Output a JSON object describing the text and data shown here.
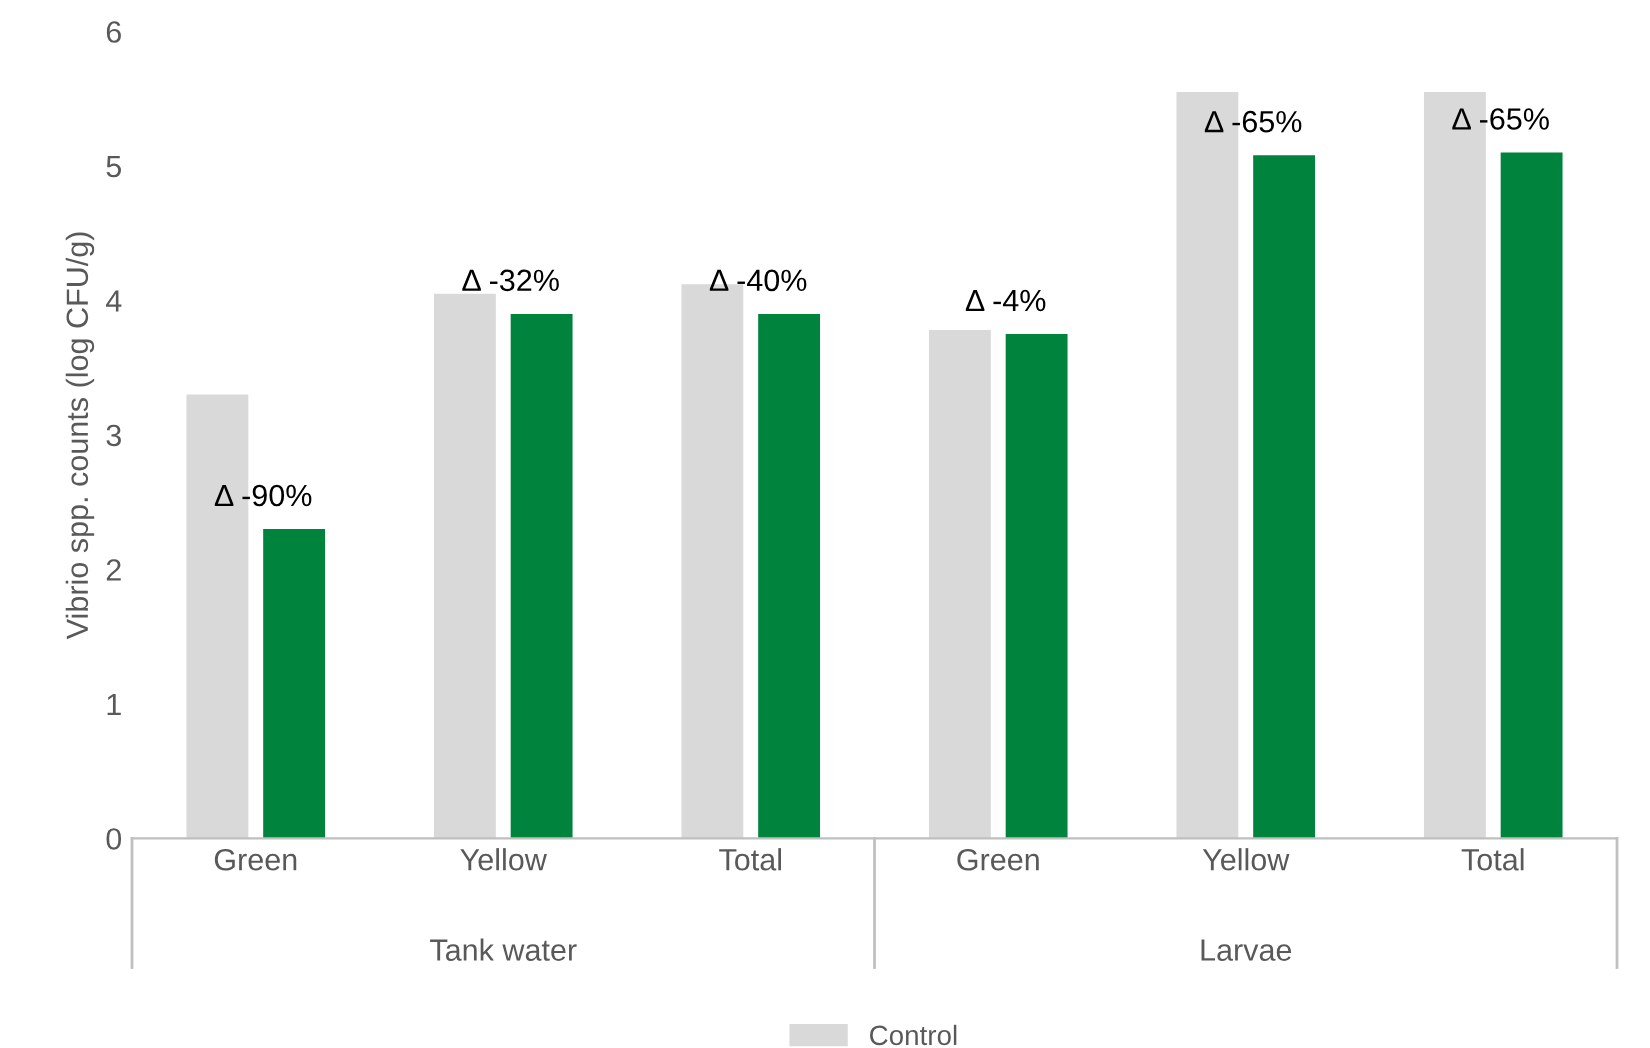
{
  "chart_data": {
    "type": "bar",
    "ylabel": "Vibrio spp. counts (log CFU/g)",
    "categories": [
      "Green",
      "Yellow",
      "Total",
      "Green",
      "Yellow",
      "Total"
    ],
    "series": [
      {
        "name": "Control",
        "color": "#d9d9d9",
        "values": [
          3.3,
          4.05,
          4.12,
          3.78,
          5.55,
          5.55
        ]
      },
      {
        "color": "#00843d",
        "values": [
          2.3,
          3.9,
          3.9,
          3.75,
          5.08,
          5.1
        ]
      }
    ],
    "ylim": [
      0,
      6
    ],
    "yticks": [
      0,
      1,
      2,
      3,
      4,
      5,
      6
    ],
    "grid": false,
    "legend": "bottom",
    "annotations": [
      "Tank water",
      "Larvae",
      "Δ -90%",
      "Δ -32%",
      "Δ -40%",
      "Δ -4%",
      "Δ -65%",
      "Δ -65%"
    ]
  }
}
